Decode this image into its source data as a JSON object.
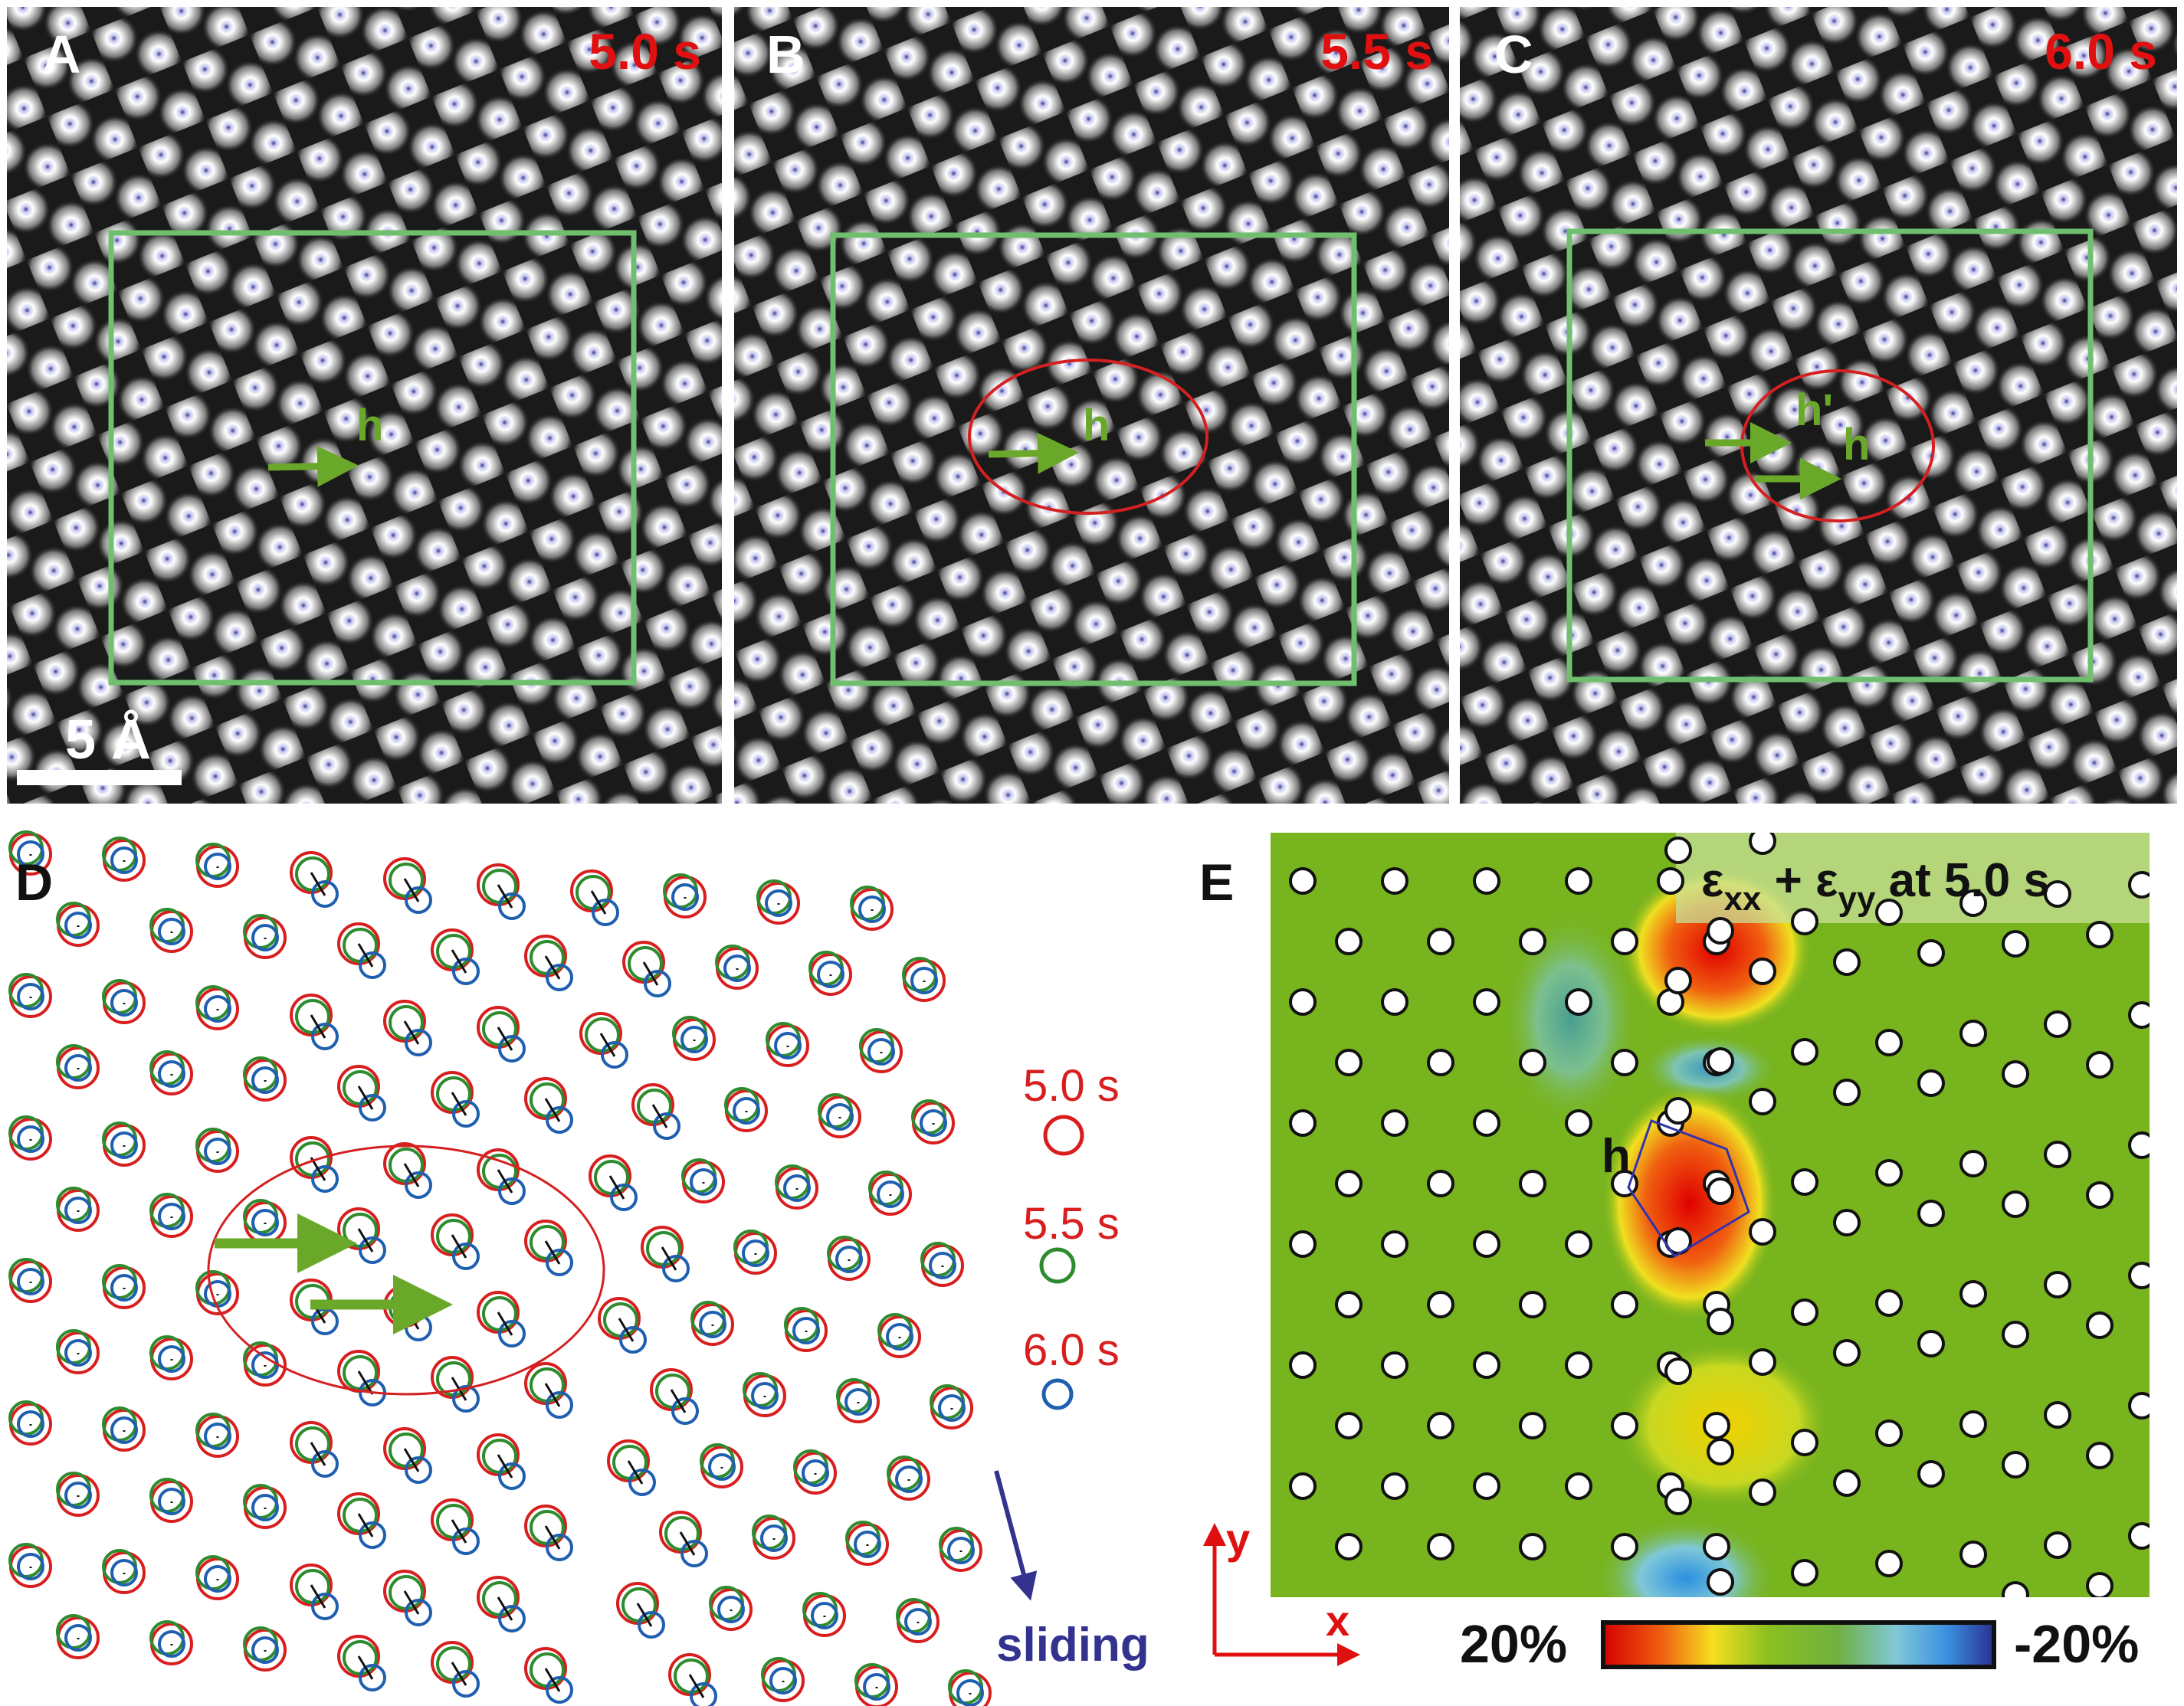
{
  "panels": [
    {
      "letter": "A",
      "time": "5.0 s",
      "markers": [
        "h"
      ]
    },
    {
      "letter": "B",
      "time": "5.5 s",
      "markers": [
        "h"
      ]
    },
    {
      "letter": "C",
      "time": "6.0 s",
      "markers": [
        "h'",
        "h"
      ]
    }
  ],
  "scale_bar": "5 Å",
  "panel_d": {
    "letter": "D",
    "legend": [
      {
        "label": "5.0 s",
        "color": "#d81e1e"
      },
      {
        "label": "5.5 s",
        "color": "#2e8b2e"
      },
      {
        "label": "6.0 s",
        "color": "#1f5fb0"
      }
    ],
    "sliding_label": "sliding"
  },
  "panel_e": {
    "letter": "E",
    "title_parts": {
      "e1": "ε",
      "s1": "xx",
      "plus": " + ",
      "e2": "ε",
      "s2": "yy",
      "rest": " at 5.0 s"
    },
    "marker": "h",
    "axis_x": "x",
    "axis_y": "y",
    "colorbar_min_label": "20%",
    "colorbar_max_label": "-20%",
    "colorbar_range_percent": [
      20,
      -20
    ]
  },
  "colors": {
    "accent_green": "#6aa82a",
    "box_green": "#6fbf6f",
    "red": "#e01010",
    "ellipse": "#d42020",
    "sliding_arrow": "#33338f"
  }
}
